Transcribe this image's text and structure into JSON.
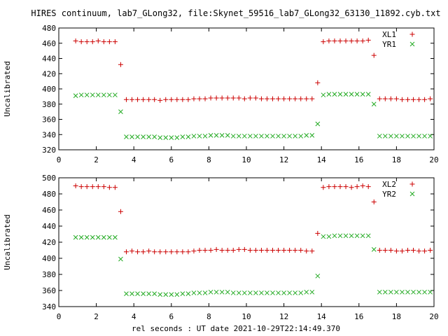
{
  "title": "HIRES continuum, lab7_GLong32, file:Skynet_59516_lab7_GLong32_63130_11892.cyb.txt",
  "xlabel": "rel seconds : UT date 2021-10-29T22:14:49.370",
  "colors": {
    "red": "#cc0000",
    "green": "#22aa22"
  },
  "chart_data": [
    {
      "type": "scatter",
      "ylabel": "Uncalibrated",
      "xlim": [
        0,
        20
      ],
      "ylim": [
        320,
        480
      ],
      "xticks": [
        0,
        2,
        4,
        6,
        8,
        10,
        12,
        14,
        16,
        18,
        20
      ],
      "yticks": [
        320,
        340,
        360,
        380,
        400,
        420,
        440,
        460,
        480
      ],
      "grid": false,
      "legend_position": "top-right",
      "series": [
        {
          "name": "XL1",
          "marker": "plus",
          "color": "#cc0000",
          "x": [
            0.9,
            1.2,
            1.5,
            1.8,
            2.1,
            2.4,
            2.7,
            3.0,
            3.3,
            3.6,
            3.9,
            4.2,
            4.5,
            4.8,
            5.1,
            5.4,
            5.7,
            6.0,
            6.3,
            6.6,
            6.9,
            7.2,
            7.5,
            7.8,
            8.1,
            8.4,
            8.7,
            9.0,
            9.3,
            9.6,
            9.9,
            10.2,
            10.5,
            10.8,
            11.1,
            11.4,
            11.7,
            12.0,
            12.3,
            12.6,
            12.9,
            13.2,
            13.5,
            13.8,
            14.1,
            14.4,
            14.7,
            15.0,
            15.3,
            15.6,
            15.9,
            16.2,
            16.5,
            16.8,
            17.1,
            17.4,
            17.7,
            18.0,
            18.3,
            18.6,
            18.9,
            19.2,
            19.5,
            19.8
          ],
          "y": [
            463,
            462,
            462,
            462,
            463,
            462,
            462,
            462,
            432,
            386,
            386,
            386,
            386,
            386,
            386,
            385,
            386,
            386,
            386,
            386,
            386,
            387,
            387,
            387,
            388,
            388,
            388,
            388,
            388,
            388,
            387,
            388,
            388,
            387,
            387,
            387,
            387,
            387,
            387,
            387,
            387,
            387,
            387,
            408,
            462,
            463,
            463,
            463,
            463,
            463,
            463,
            463,
            464,
            444,
            387,
            387,
            387,
            387,
            386,
            386,
            386,
            386,
            386,
            387
          ]
        },
        {
          "name": "YR1",
          "marker": "cross",
          "color": "#22aa22",
          "x": [
            0.9,
            1.2,
            1.5,
            1.8,
            2.1,
            2.4,
            2.7,
            3.0,
            3.3,
            3.6,
            3.9,
            4.2,
            4.5,
            4.8,
            5.1,
            5.4,
            5.7,
            6.0,
            6.3,
            6.6,
            6.9,
            7.2,
            7.5,
            7.8,
            8.1,
            8.4,
            8.7,
            9.0,
            9.3,
            9.6,
            9.9,
            10.2,
            10.5,
            10.8,
            11.1,
            11.4,
            11.7,
            12.0,
            12.3,
            12.6,
            12.9,
            13.2,
            13.5,
            13.8,
            14.1,
            14.4,
            14.7,
            15.0,
            15.3,
            15.6,
            15.9,
            16.2,
            16.5,
            16.8,
            17.1,
            17.4,
            17.7,
            18.0,
            18.3,
            18.6,
            18.9,
            19.2,
            19.5,
            19.8
          ],
          "y": [
            391,
            392,
            392,
            392,
            392,
            392,
            392,
            392,
            370,
            337,
            337,
            337,
            337,
            337,
            337,
            336,
            336,
            336,
            336,
            337,
            337,
            338,
            338,
            338,
            339,
            339,
            339,
            339,
            338,
            338,
            338,
            338,
            338,
            338,
            338,
            338,
            338,
            338,
            338,
            338,
            338,
            339,
            339,
            354,
            392,
            393,
            393,
            393,
            393,
            393,
            393,
            393,
            393,
            380,
            338,
            338,
            338,
            338,
            338,
            338,
            338,
            338,
            338,
            338
          ]
        }
      ]
    },
    {
      "type": "scatter",
      "ylabel": "Uncalibrated",
      "xlim": [
        0,
        20
      ],
      "ylim": [
        340,
        500
      ],
      "xticks": [
        0,
        2,
        4,
        6,
        8,
        10,
        12,
        14,
        16,
        18,
        20
      ],
      "yticks": [
        340,
        360,
        380,
        400,
        420,
        440,
        460,
        480,
        500
      ],
      "grid": false,
      "legend_position": "top-right",
      "series": [
        {
          "name": "XL2",
          "marker": "plus",
          "color": "#cc0000",
          "x": [
            0.9,
            1.2,
            1.5,
            1.8,
            2.1,
            2.4,
            2.7,
            3.0,
            3.3,
            3.6,
            3.9,
            4.2,
            4.5,
            4.8,
            5.1,
            5.4,
            5.7,
            6.0,
            6.3,
            6.6,
            6.9,
            7.2,
            7.5,
            7.8,
            8.1,
            8.4,
            8.7,
            9.0,
            9.3,
            9.6,
            9.9,
            10.2,
            10.5,
            10.8,
            11.1,
            11.4,
            11.7,
            12.0,
            12.3,
            12.6,
            12.9,
            13.2,
            13.5,
            13.8,
            14.1,
            14.4,
            14.7,
            15.0,
            15.3,
            15.6,
            15.9,
            16.2,
            16.5,
            16.8,
            17.1,
            17.4,
            17.7,
            18.0,
            18.3,
            18.6,
            18.9,
            19.2,
            19.5,
            19.8
          ],
          "y": [
            490,
            489,
            489,
            489,
            489,
            489,
            488,
            488,
            458,
            408,
            409,
            408,
            408,
            409,
            408,
            408,
            408,
            408,
            408,
            408,
            408,
            409,
            410,
            410,
            410,
            411,
            410,
            410,
            410,
            411,
            411,
            410,
            410,
            410,
            410,
            410,
            410,
            410,
            410,
            410,
            410,
            409,
            409,
            431,
            488,
            489,
            489,
            489,
            489,
            488,
            489,
            490,
            489,
            470,
            410,
            410,
            410,
            409,
            409,
            410,
            410,
            409,
            409,
            410
          ]
        },
        {
          "name": "YR2",
          "marker": "cross",
          "color": "#22aa22",
          "x": [
            0.9,
            1.2,
            1.5,
            1.8,
            2.1,
            2.4,
            2.7,
            3.0,
            3.3,
            3.6,
            3.9,
            4.2,
            4.5,
            4.8,
            5.1,
            5.4,
            5.7,
            6.0,
            6.3,
            6.6,
            6.9,
            7.2,
            7.5,
            7.8,
            8.1,
            8.4,
            8.7,
            9.0,
            9.3,
            9.6,
            9.9,
            10.2,
            10.5,
            10.8,
            11.1,
            11.4,
            11.7,
            12.0,
            12.3,
            12.6,
            12.9,
            13.2,
            13.5,
            13.8,
            14.1,
            14.4,
            14.7,
            15.0,
            15.3,
            15.6,
            15.9,
            16.2,
            16.5,
            16.8,
            17.1,
            17.4,
            17.7,
            18.0,
            18.3,
            18.6,
            18.9,
            19.2,
            19.5,
            19.8
          ],
          "y": [
            426,
            426,
            426,
            426,
            426,
            426,
            426,
            426,
            399,
            356,
            356,
            356,
            356,
            356,
            356,
            355,
            355,
            355,
            355,
            356,
            356,
            357,
            357,
            357,
            358,
            358,
            358,
            358,
            357,
            357,
            357,
            357,
            357,
            357,
            357,
            357,
            357,
            357,
            357,
            357,
            357,
            358,
            358,
            378,
            427,
            427,
            428,
            428,
            428,
            428,
            428,
            428,
            428,
            411,
            358,
            358,
            358,
            358,
            358,
            358,
            358,
            358,
            358,
            358
          ]
        }
      ]
    }
  ]
}
